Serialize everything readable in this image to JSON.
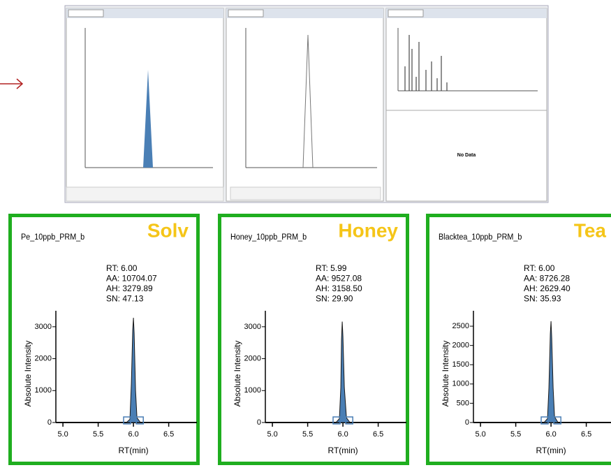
{
  "screenshot": {
    "no_data": "No Data"
  },
  "chart_data": [
    {
      "type": "area",
      "title": "Pe_10ppb_PRM_b",
      "label": "Solv",
      "annotations": [
        "RT: 6.00",
        "AA: 10704.07",
        "AH: 3279.89",
        "SN: 47.13"
      ],
      "ylabel": "Absolute Intensity",
      "xlabel": "RT(min)",
      "x": [
        5.9,
        5.95,
        5.97,
        5.99,
        6.0,
        6.01,
        6.03,
        6.05,
        6.1
      ],
      "values": [
        0,
        100,
        1200,
        2900,
        3280,
        2800,
        1000,
        150,
        0
      ],
      "color": "#4a7fb5",
      "label_color": "#f5c518",
      "border_color": "#1fae1f",
      "xlim": [
        4.9,
        6.9
      ],
      "ylim": [
        0,
        3500
      ],
      "xticks": [
        {
          "value": 5,
          "label": "5.0"
        },
        5.5,
        {
          "value": 6,
          "label": "6.0"
        },
        6.5
      ],
      "yticks": [
        0,
        1000,
        2000,
        3000
      ]
    },
    {
      "type": "area",
      "title": "Honey_10ppb_PRM_b",
      "label": "Honey",
      "annotations": [
        "RT: 5.99",
        "AA: 9527.08",
        "AH: 3158.50",
        "SN: 29.90"
      ],
      "ylabel": "Absolute Intensity",
      "xlabel": "RT(min)",
      "x": [
        5.9,
        5.95,
        5.97,
        5.98,
        5.99,
        6.0,
        6.02,
        6.05,
        6.1
      ],
      "values": [
        0,
        120,
        1100,
        2600,
        3160,
        2700,
        1100,
        150,
        0
      ],
      "color": "#4a7fb5",
      "label_color": "#f5c518",
      "border_color": "#1fae1f",
      "xlim": [
        4.9,
        6.9
      ],
      "ylim": [
        0,
        3500
      ],
      "xticks": [
        {
          "value": 5,
          "label": "5.0"
        },
        5.5,
        {
          "value": 6,
          "label": "6.0"
        },
        6.5
      ],
      "yticks": [
        0,
        1000,
        2000,
        3000
      ]
    },
    {
      "type": "area",
      "title": "Blacktea_10ppb_PRM_b",
      "label": "Tea",
      "annotations": [
        "RT: 6.00",
        "AA: 8726.28",
        "AH: 2629.40",
        "SN: 35.93"
      ],
      "ylabel": "Absolute Intensity",
      "xlabel": "RT(min)",
      "x": [
        5.9,
        5.95,
        5.97,
        5.99,
        6.0,
        6.01,
        6.03,
        6.05,
        6.1
      ],
      "values": [
        0,
        100,
        900,
        2300,
        2630,
        2200,
        900,
        150,
        0
      ],
      "color": "#4a7fb5",
      "label_color": "#f5c518",
      "border_color": "#1fae1f",
      "xlim": [
        4.9,
        6.9
      ],
      "ylim": [
        0,
        2900
      ],
      "xticks": [
        {
          "value": 5,
          "label": "5.0"
        },
        5.5,
        {
          "value": 6,
          "label": "6.0"
        },
        6.5
      ],
      "yticks": [
        0,
        500,
        1000,
        1500,
        2000,
        2500
      ]
    }
  ]
}
